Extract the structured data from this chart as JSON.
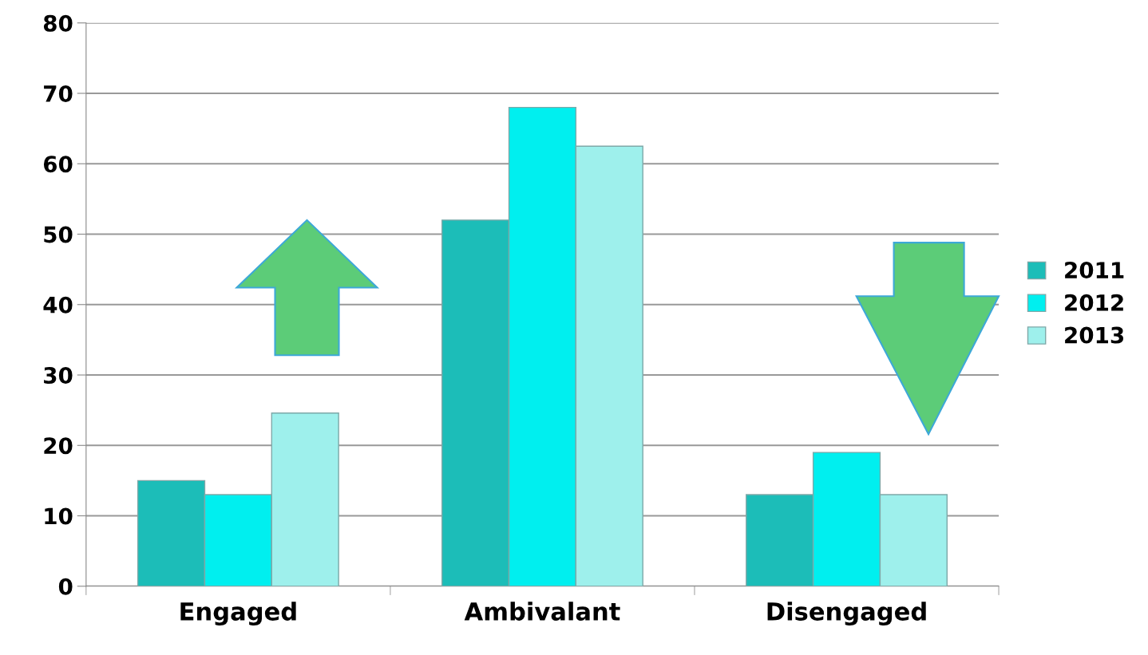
{
  "chart_data": {
    "type": "bar",
    "categories": [
      "Engaged",
      "Ambivalant",
      "Disengaged"
    ],
    "series": [
      {
        "name": "2011",
        "color": "#1cbdb8",
        "values": [
          15,
          52,
          13
        ]
      },
      {
        "name": "2012",
        "color": "#00efef",
        "values": [
          13,
          68,
          19
        ]
      },
      {
        "name": "2013",
        "color": "#9ef0ec",
        "values": [
          24.6,
          62.5,
          13
        ]
      }
    ],
    "ylim": [
      0,
      80
    ],
    "yticks": [
      0,
      10,
      20,
      30,
      40,
      50,
      60,
      70,
      80
    ],
    "grid": "y",
    "legend": "right"
  }
}
